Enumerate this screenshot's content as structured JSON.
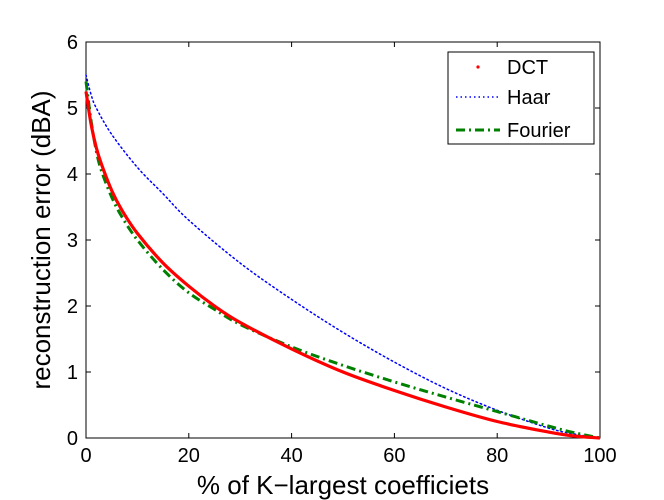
{
  "chart_data": {
    "type": "line",
    "title": "",
    "xlabel": "% of K−largest coefficiets",
    "ylabel": "reconstruction error (dBA)",
    "xlim": [
      0,
      100
    ],
    "ylim": [
      0,
      6
    ],
    "xticks": [
      "0",
      "20",
      "40",
      "60",
      "80",
      "100"
    ],
    "yticks": [
      "0",
      "1",
      "2",
      "3",
      "4",
      "5",
      "6"
    ],
    "grid": false,
    "legend_position": "top-right",
    "series": [
      {
        "name": "DCT",
        "color": "#ff0000",
        "style": "solid",
        "x": [
          0,
          1,
          2,
          3,
          5,
          7,
          10,
          15,
          20,
          25,
          30,
          40,
          50,
          60,
          70,
          80,
          90,
          95,
          100
        ],
        "y": [
          5.25,
          4.75,
          4.4,
          4.15,
          3.75,
          3.45,
          3.1,
          2.65,
          2.3,
          2.0,
          1.75,
          1.35,
          1.0,
          0.72,
          0.47,
          0.25,
          0.09,
          0.03,
          0.0
        ]
      },
      {
        "name": "Haar",
        "color": "#0000ff",
        "style": "dotted",
        "x": [
          0,
          1,
          2,
          5,
          10,
          15,
          20,
          30,
          40,
          50,
          60,
          70,
          80,
          90,
          95,
          100
        ],
        "y": [
          5.5,
          5.2,
          5.0,
          4.6,
          4.1,
          3.7,
          3.3,
          2.65,
          2.1,
          1.6,
          1.15,
          0.75,
          0.42,
          0.15,
          0.06,
          0.0
        ]
      },
      {
        "name": "Fourier",
        "color": "#008000",
        "style": "dashdot",
        "x": [
          0,
          1,
          2,
          3,
          5,
          7,
          10,
          15,
          20,
          25,
          30,
          40,
          50,
          60,
          70,
          80,
          90,
          95,
          100
        ],
        "y": [
          5.4,
          4.8,
          4.35,
          4.05,
          3.65,
          3.35,
          3.0,
          2.55,
          2.2,
          1.95,
          1.72,
          1.38,
          1.1,
          0.85,
          0.62,
          0.4,
          0.18,
          0.08,
          0.0
        ]
      }
    ]
  }
}
